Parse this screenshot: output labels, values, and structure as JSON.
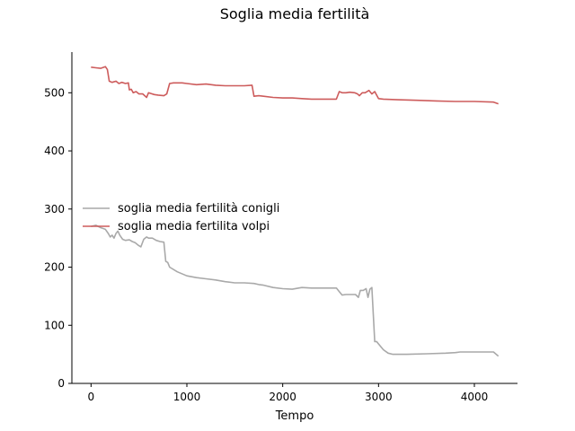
{
  "chart_data": {
    "type": "line",
    "title": "Soglia media fertilità",
    "xlabel": "Tempo",
    "ylabel": "",
    "xlim": [
      -200,
      4450
    ],
    "ylim": [
      0,
      570
    ],
    "xticks": [
      0,
      1000,
      2000,
      3000,
      4000
    ],
    "yticks": [
      0,
      100,
      200,
      300,
      400,
      500
    ],
    "grid": false,
    "legend_position": "center-left",
    "series": [
      {
        "name": "soglia media fertilità conigli",
        "color": "#a9a9a9",
        "points": [
          [
            0,
            270
          ],
          [
            50,
            272
          ],
          [
            100,
            268
          ],
          [
            150,
            265
          ],
          [
            180,
            258
          ],
          [
            200,
            252
          ],
          [
            220,
            255
          ],
          [
            240,
            250
          ],
          [
            260,
            258
          ],
          [
            280,
            262
          ],
          [
            300,
            255
          ],
          [
            330,
            248
          ],
          [
            360,
            246
          ],
          [
            400,
            247
          ],
          [
            430,
            244
          ],
          [
            460,
            242
          ],
          [
            490,
            238
          ],
          [
            520,
            235
          ],
          [
            550,
            248
          ],
          [
            580,
            252
          ],
          [
            600,
            250
          ],
          [
            640,
            250
          ],
          [
            680,
            246
          ],
          [
            720,
            244
          ],
          [
            760,
            243
          ],
          [
            780,
            210
          ],
          [
            800,
            208
          ],
          [
            820,
            200
          ],
          [
            900,
            192
          ],
          [
            1000,
            185
          ],
          [
            1100,
            182
          ],
          [
            1200,
            180
          ],
          [
            1300,
            178
          ],
          [
            1400,
            175
          ],
          [
            1500,
            173
          ],
          [
            1600,
            173
          ],
          [
            1700,
            172
          ],
          [
            1750,
            170
          ],
          [
            1800,
            169
          ],
          [
            1900,
            165
          ],
          [
            2000,
            163
          ],
          [
            2100,
            162
          ],
          [
            2200,
            165
          ],
          [
            2300,
            164
          ],
          [
            2400,
            164
          ],
          [
            2500,
            164
          ],
          [
            2560,
            164
          ],
          [
            2590,
            158
          ],
          [
            2620,
            152
          ],
          [
            2660,
            153
          ],
          [
            2700,
            153
          ],
          [
            2760,
            153
          ],
          [
            2790,
            148
          ],
          [
            2810,
            160
          ],
          [
            2840,
            160
          ],
          [
            2870,
            163
          ],
          [
            2890,
            148
          ],
          [
            2910,
            162
          ],
          [
            2930,
            165
          ],
          [
            2960,
            72
          ],
          [
            2980,
            72
          ],
          [
            3000,
            68
          ],
          [
            3050,
            58
          ],
          [
            3100,
            52
          ],
          [
            3150,
            50
          ],
          [
            3300,
            50
          ],
          [
            3500,
            51
          ],
          [
            3700,
            52
          ],
          [
            3800,
            53
          ],
          [
            3850,
            54
          ],
          [
            4000,
            54
          ],
          [
            4200,
            54
          ],
          [
            4250,
            47
          ]
        ]
      },
      {
        "name": "soglia media fertilita volpi",
        "color": "#cd5c5c",
        "points": [
          [
            0,
            544
          ],
          [
            50,
            543
          ],
          [
            100,
            542
          ],
          [
            150,
            545
          ],
          [
            170,
            540
          ],
          [
            190,
            520
          ],
          [
            220,
            518
          ],
          [
            260,
            520
          ],
          [
            290,
            516
          ],
          [
            320,
            518
          ],
          [
            360,
            516
          ],
          [
            390,
            517
          ],
          [
            400,
            505
          ],
          [
            420,
            506
          ],
          [
            440,
            500
          ],
          [
            470,
            502
          ],
          [
            500,
            498
          ],
          [
            540,
            498
          ],
          [
            580,
            492
          ],
          [
            600,
            500
          ],
          [
            620,
            499
          ],
          [
            660,
            497
          ],
          [
            700,
            496
          ],
          [
            760,
            495
          ],
          [
            790,
            498
          ],
          [
            820,
            516
          ],
          [
            860,
            517
          ],
          [
            950,
            517
          ],
          [
            1000,
            516
          ],
          [
            1100,
            514
          ],
          [
            1200,
            515
          ],
          [
            1300,
            513
          ],
          [
            1400,
            512
          ],
          [
            1500,
            512
          ],
          [
            1600,
            512
          ],
          [
            1680,
            513
          ],
          [
            1700,
            494
          ],
          [
            1750,
            495
          ],
          [
            1800,
            494
          ],
          [
            1900,
            492
          ],
          [
            2000,
            491
          ],
          [
            2100,
            491
          ],
          [
            2200,
            490
          ],
          [
            2300,
            489
          ],
          [
            2400,
            489
          ],
          [
            2500,
            489
          ],
          [
            2560,
            489
          ],
          [
            2590,
            502
          ],
          [
            2620,
            500
          ],
          [
            2660,
            500
          ],
          [
            2700,
            501
          ],
          [
            2750,
            500
          ],
          [
            2780,
            498
          ],
          [
            2800,
            495
          ],
          [
            2830,
            500
          ],
          [
            2860,
            500
          ],
          [
            2900,
            504
          ],
          [
            2930,
            498
          ],
          [
            2960,
            502
          ],
          [
            3000,
            490
          ],
          [
            3050,
            489
          ],
          [
            3200,
            488
          ],
          [
            3400,
            487
          ],
          [
            3600,
            486
          ],
          [
            3800,
            485
          ],
          [
            4000,
            485
          ],
          [
            4200,
            484
          ],
          [
            4250,
            481
          ]
        ]
      }
    ]
  }
}
